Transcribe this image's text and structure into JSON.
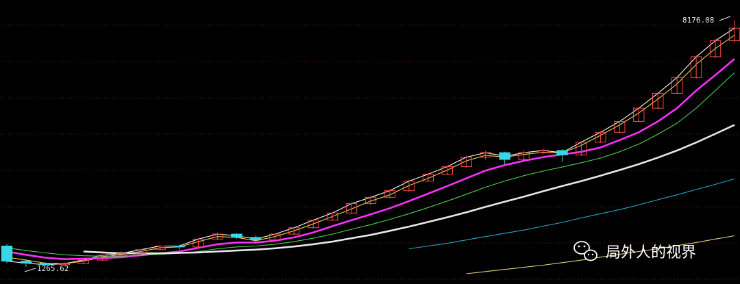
{
  "chart_data": {
    "type": "candlestick",
    "y_scale": "log",
    "ylim": [
      1200,
      8500
    ],
    "grid": true,
    "colors": {
      "background": "#000000",
      "up_candle": "#ff4a4a",
      "down_candle": "#39d6e6",
      "grid": "#7a1616"
    },
    "annotations": {
      "low_label": "1265.62",
      "high_label": "8176.08"
    },
    "series": [
      {
        "kind": "ma",
        "color": "#ffffff",
        "values": [
          1320,
          1300,
          1285,
          1295,
          1330,
          1380,
          1400,
          1440,
          1480,
          1480,
          1560,
          1620,
          1600,
          1560,
          1620,
          1700,
          1800,
          1900,
          2040,
          2140,
          2250,
          2420,
          2550,
          2700,
          2900,
          3000,
          2920,
          3000,
          3050,
          3000,
          3250,
          3500,
          3800,
          4200,
          4700,
          5300,
          6200,
          7000,
          7700
        ]
      },
      {
        "kind": "ma",
        "color": "#f2d24a",
        "values": [
          1360,
          1330,
          1300,
          1295,
          1320,
          1360,
          1390,
          1420,
          1460,
          1470,
          1530,
          1590,
          1580,
          1540,
          1590,
          1660,
          1750,
          1850,
          1960,
          2080,
          2180,
          2340,
          2470,
          2630,
          2820,
          2940,
          2900,
          2960,
          3010,
          2990,
          3170,
          3420,
          3700,
          4050,
          4500,
          5050,
          5850,
          6600,
          7300
        ]
      },
      {
        "kind": "ma",
        "color": "#ff2fff",
        "values": [
          1420,
          1385,
          1355,
          1340,
          1345,
          1350,
          1360,
          1380,
          1400,
          1420,
          1460,
          1500,
          1520,
          1520,
          1540,
          1580,
          1640,
          1720,
          1800,
          1880,
          1970,
          2080,
          2200,
          2330,
          2470,
          2620,
          2730,
          2820,
          2900,
          2960,
          3020,
          3120,
          3300,
          3500,
          3800,
          4200,
          4800,
          5400,
          6100
        ]
      },
      {
        "kind": "ma",
        "color": "#4fd04f",
        "values": [
          1460,
          1430,
          1405,
          1385,
          1375,
          1370,
          1370,
          1380,
          1390,
          1400,
          1420,
          1450,
          1470,
          1480,
          1500,
          1530,
          1570,
          1620,
          1680,
          1740,
          1810,
          1890,
          1980,
          2080,
          2190,
          2310,
          2420,
          2520,
          2610,
          2690,
          2780,
          2880,
          3020,
          3200,
          3450,
          3750,
          4200,
          4800,
          5500
        ]
      },
      {
        "kind": "ma",
        "color": "#e8e8e8",
        "values": [
          null,
          null,
          null,
          null,
          1420,
          1410,
          1400,
          1400,
          1400,
          1405,
          1410,
          1420,
          1430,
          1440,
          1455,
          1475,
          1500,
          1530,
          1570,
          1610,
          1660,
          1715,
          1775,
          1840,
          1910,
          1990,
          2070,
          2150,
          2240,
          2330,
          2420,
          2520,
          2630,
          2750,
          2890,
          3050,
          3240,
          3460,
          3700
        ]
      },
      {
        "kind": "ma",
        "color": "#2aa9c8",
        "values": [
          null,
          null,
          null,
          null,
          null,
          null,
          null,
          null,
          null,
          null,
          null,
          null,
          null,
          null,
          null,
          null,
          null,
          null,
          null,
          null,
          null,
          1450,
          1480,
          1510,
          1550,
          1590,
          1630,
          1670,
          1720,
          1770,
          1830,
          1890,
          1950,
          2020,
          2100,
          2180,
          2270,
          2360,
          2460
        ]
      },
      {
        "kind": "ma",
        "color": "#e0d080",
        "values": [
          null,
          null,
          null,
          null,
          null,
          null,
          null,
          null,
          null,
          null,
          null,
          null,
          null,
          null,
          null,
          null,
          null,
          null,
          null,
          null,
          null,
          null,
          null,
          null,
          1200,
          1220,
          1240,
          1260,
          1280,
          1305,
          1330,
          1360,
          1390,
          1420,
          1450,
          1485,
          1520,
          1560,
          1600
        ]
      }
    ],
    "candles": [
      [
        1480,
        1500,
        1300,
        1320
      ],
      [
        1320,
        1340,
        1265.62,
        1300
      ],
      [
        1300,
        1310,
        1270,
        1285
      ],
      [
        1285,
        1310,
        1275,
        1295
      ],
      [
        1295,
        1340,
        1290,
        1330
      ],
      [
        1330,
        1390,
        1320,
        1380
      ],
      [
        1380,
        1420,
        1370,
        1400
      ],
      [
        1400,
        1450,
        1390,
        1440
      ],
      [
        1440,
        1490,
        1430,
        1480
      ],
      [
        1480,
        1495,
        1440,
        1470
      ],
      [
        1470,
        1570,
        1460,
        1560
      ],
      [
        1560,
        1640,
        1550,
        1620
      ],
      [
        1620,
        1630,
        1560,
        1580
      ],
      [
        1580,
        1600,
        1520,
        1550
      ],
      [
        1550,
        1630,
        1540,
        1620
      ],
      [
        1620,
        1710,
        1610,
        1700
      ],
      [
        1700,
        1810,
        1690,
        1800
      ],
      [
        1800,
        1910,
        1790,
        1900
      ],
      [
        1900,
        2060,
        1890,
        2040
      ],
      [
        2040,
        2160,
        2020,
        2140
      ],
      [
        2140,
        2270,
        2120,
        2250
      ],
      [
        2250,
        2440,
        2230,
        2420
      ],
      [
        2420,
        2570,
        2400,
        2550
      ],
      [
        2550,
        2720,
        2530,
        2700
      ],
      [
        2700,
        2930,
        2680,
        2900
      ],
      [
        2900,
        3050,
        2850,
        3000
      ],
      [
        3000,
        3020,
        2750,
        2850
      ],
      [
        2850,
        3050,
        2820,
        3000
      ],
      [
        3000,
        3100,
        2960,
        3050
      ],
      [
        3050,
        3080,
        2800,
        2950
      ],
      [
        2950,
        3270,
        2930,
        3250
      ],
      [
        3250,
        3520,
        3230,
        3500
      ],
      [
        3500,
        3820,
        3480,
        3800
      ],
      [
        3800,
        4230,
        3780,
        4200
      ],
      [
        4200,
        4750,
        4180,
        4700
      ],
      [
        4700,
        5350,
        4680,
        5300
      ],
      [
        5300,
        6250,
        5250,
        6200
      ],
      [
        6200,
        7100,
        6150,
        7000
      ],
      [
        7000,
        8176.08,
        6900,
        7700
      ]
    ]
  },
  "watermark": {
    "text": "局外人的视界",
    "icon": "wechat-icon"
  }
}
